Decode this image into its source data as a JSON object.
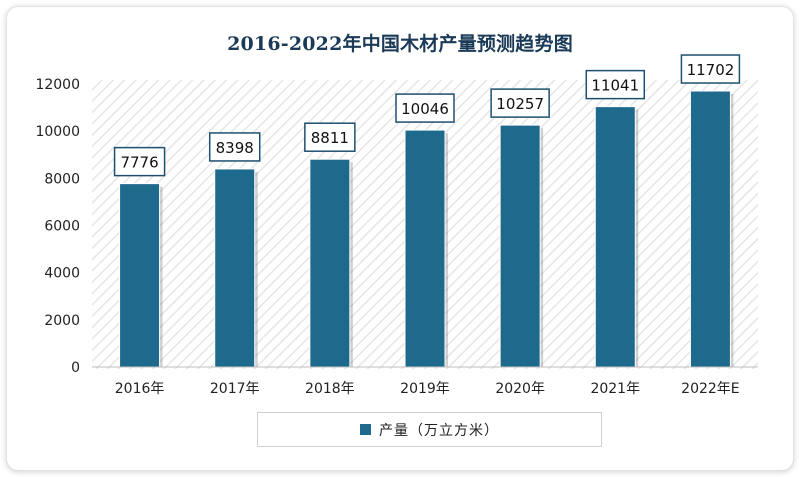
{
  "chart_data": {
    "type": "bar",
    "title": "2016-2022年中国木材产量预测趋势图",
    "categories": [
      "2016年",
      "2017年",
      "2018年",
      "2019年",
      "2020年",
      "2021年",
      "2022年E"
    ],
    "series": [
      {
        "name": "产量（万立方米）",
        "values": [
          7776,
          8398,
          8811,
          10046,
          10257,
          11041,
          11702
        ],
        "color": "#1e6a8d"
      }
    ],
    "data_labels": [
      "7776",
      "8398",
      "8811",
      "10046",
      "10257",
      "11041",
      "11702"
    ],
    "y_ticks": [
      "0",
      "2000",
      "4000",
      "6000",
      "8000",
      "10000",
      "12000"
    ],
    "ylim": [
      0,
      12000
    ],
    "xlabel": "",
    "ylabel": "",
    "grid": false,
    "legend_position": "bottom",
    "background_pattern": "diagonal-hatch"
  },
  "colors": {
    "bar": "#1e6a8d",
    "title": "#1b3a57",
    "label_border": "#1e4f6e"
  }
}
